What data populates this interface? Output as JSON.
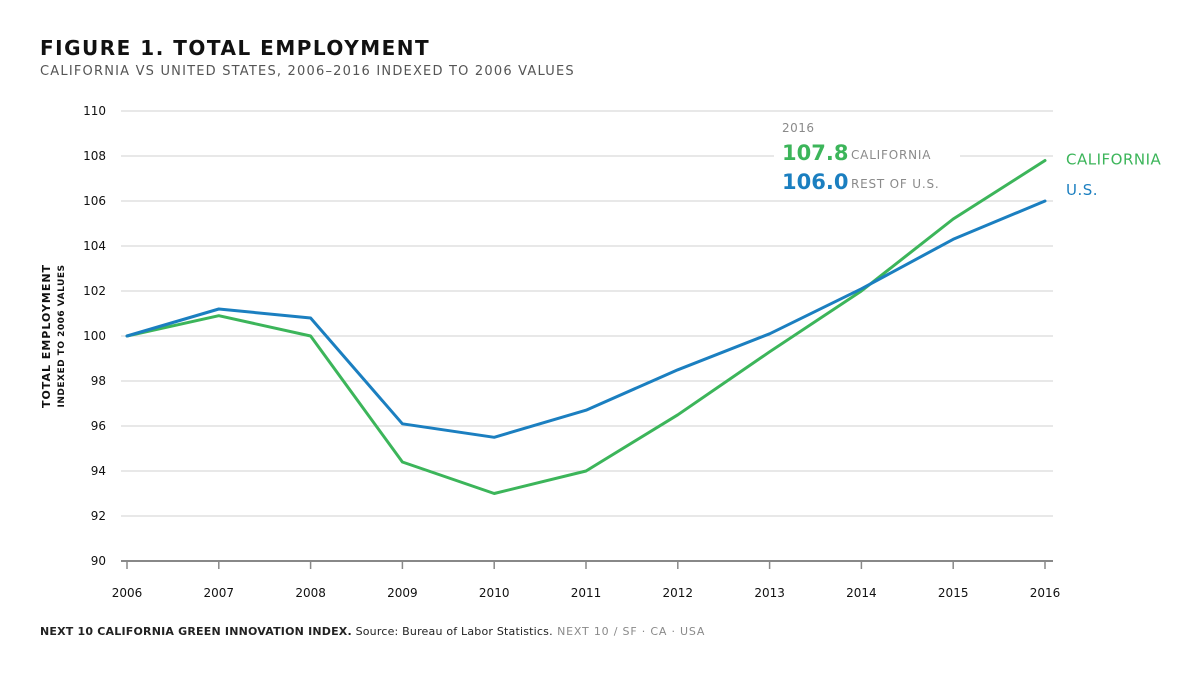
{
  "title": "FIGURE 1. TOTAL EMPLOYMENT",
  "subtitle": "CALIFORNIA VS UNITED STATES, 2006–2016 INDEXED TO 2006 VALUES",
  "footer": {
    "bold": "NEXT 10 CALIFORNIA GREEN INNOVATION INDEX.",
    "source": " Source: Bureau of Labor Statistics.",
    "org": " NEXT 10  /  SF · CA · USA"
  },
  "colors": {
    "california": "#3cb55a",
    "us": "#1b7fc0",
    "grid": "#d9d9d9",
    "axis": "#888888"
  },
  "annotation": {
    "year": "2016",
    "ca_value": "107.8",
    "ca_label": "CALIFORNIA",
    "us_value": "106.0",
    "us_label": "REST OF U.S."
  },
  "chart_data": {
    "type": "line",
    "title": "FIGURE 1. TOTAL EMPLOYMENT",
    "subtitle": "CALIFORNIA VS UNITED STATES, 2006–2016 INDEXED TO 2006 VALUES",
    "ylabel": "TOTAL EMPLOYMENT",
    "ylabel_sub": "INDEXED TO 2006 VALUES",
    "xlabel": "",
    "x": [
      "2006",
      "2007",
      "2008",
      "2009",
      "2010",
      "2011",
      "2012",
      "2013",
      "2014",
      "2015",
      "2016"
    ],
    "ylim": [
      90,
      110
    ],
    "yticks": [
      90,
      92,
      94,
      96,
      98,
      100,
      102,
      104,
      106,
      108,
      110
    ],
    "grid": true,
    "series": [
      {
        "name": "CALIFORNIA",
        "color": "#3cb55a",
        "values": [
          100,
          100.9,
          100.0,
          94.4,
          93.0,
          94.0,
          96.5,
          99.3,
          102.0,
          105.2,
          107.8
        ]
      },
      {
        "name": "U.S.",
        "color": "#1b7fc0",
        "values": [
          100,
          101.2,
          100.8,
          96.1,
          95.5,
          96.7,
          98.5,
          100.1,
          102.1,
          104.3,
          106.0
        ]
      }
    ]
  }
}
